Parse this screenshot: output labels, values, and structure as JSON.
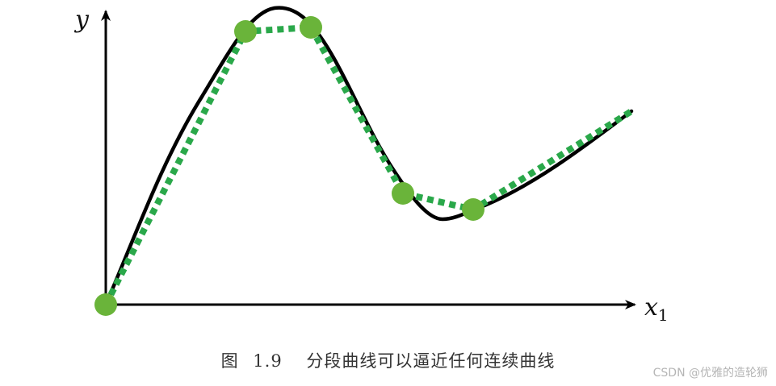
{
  "figure": {
    "axis_y_label": "y",
    "axis_x_label": "x",
    "axis_x_subscript": "1",
    "colors": {
      "curve": "#000000",
      "approximation": "#2aa84a",
      "knot": "#6ab43a",
      "axis": "#000000"
    },
    "curve": {
      "description_type": "smooth black curve",
      "shape": "rise-peak-fall-valley-rise"
    },
    "knots": [
      {
        "name": "knot-origin"
      },
      {
        "name": "knot-peak-left"
      },
      {
        "name": "knot-peak-right"
      },
      {
        "name": "knot-valley-left"
      },
      {
        "name": "knot-valley-right"
      }
    ]
  },
  "caption": {
    "label": "图",
    "number": "1.9",
    "text": "分段曲线可以逼近任何连续曲线"
  },
  "watermark": "CSDN @优雅的造轮狮"
}
